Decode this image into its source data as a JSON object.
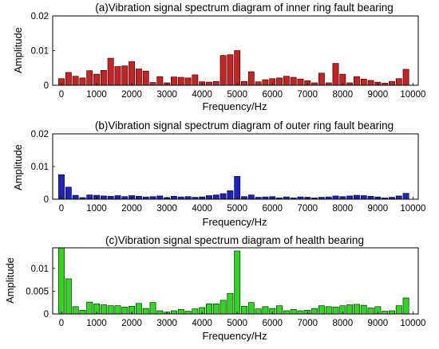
{
  "chart_data": [
    {
      "type": "bar",
      "title": "(a)Vibration signal spectrum diagram of inner ring fault bearing",
      "xlabel": "Frequency/Hz",
      "ylabel": "Amplitude",
      "xlim": [
        -250,
        10150
      ],
      "ylim": [
        0,
        0.02
      ],
      "x_ticks": [
        0,
        1000,
        2000,
        3000,
        4000,
        5000,
        6000,
        7000,
        8000,
        9000,
        10000
      ],
      "y_ticks": [
        0,
        0.01,
        0.02
      ],
      "y_tick_labels": [
        "0",
        "0.01",
        "0.02"
      ],
      "bar_color": "#cc2121",
      "grid": false,
      "x": [
        0,
        200,
        400,
        600,
        800,
        1000,
        1200,
        1400,
        1600,
        1800,
        2000,
        2200,
        2400,
        2600,
        2800,
        3000,
        3200,
        3400,
        3600,
        3800,
        4000,
        4200,
        4400,
        4600,
        4800,
        5000,
        5200,
        5400,
        5600,
        5800,
        6000,
        6200,
        6400,
        6600,
        6800,
        7000,
        7200,
        7400,
        7600,
        7800,
        8000,
        8200,
        8400,
        8600,
        8800,
        9000,
        9200,
        9400,
        9600,
        9800
      ],
      "values": [
        0.0019,
        0.0037,
        0.0026,
        0.0021,
        0.0042,
        0.0032,
        0.0043,
        0.0078,
        0.0054,
        0.0056,
        0.0068,
        0.0047,
        0.0041,
        0.0008,
        0.0025,
        0.0007,
        0.0024,
        0.0023,
        0.0021,
        0.003,
        0.001,
        0.0009,
        0.0011,
        0.0086,
        0.0088,
        0.01,
        0.0011,
        0.0039,
        0.001,
        0.0016,
        0.0019,
        0.0021,
        0.0026,
        0.0023,
        0.0018,
        0.0013,
        0.0007,
        0.0035,
        0.0007,
        0.0063,
        0.0032,
        0.0007,
        0.0025,
        0.0018,
        0.0014,
        0.0009,
        0.0006,
        0.0011,
        0.0019,
        0.0046
      ]
    },
    {
      "type": "bar",
      "title": "(b)Vibration signal spectrum diagram of outer ring fault bearing",
      "xlabel": "Frequency/Hz",
      "ylabel": "Amplitude",
      "xlim": [
        -250,
        10150
      ],
      "ylim": [
        0,
        0.02
      ],
      "x_ticks": [
        0,
        1000,
        2000,
        3000,
        4000,
        5000,
        6000,
        7000,
        8000,
        9000,
        10000
      ],
      "y_ticks": [
        0,
        0.01,
        0.02
      ],
      "y_tick_labels": [
        "0",
        "0.01",
        "0.02"
      ],
      "bar_color": "#1d22c2",
      "grid": false,
      "x": [
        0,
        200,
        400,
        600,
        800,
        1000,
        1200,
        1400,
        1600,
        1800,
        2000,
        2200,
        2400,
        2600,
        2800,
        3000,
        3200,
        3400,
        3600,
        3800,
        4000,
        4200,
        4400,
        4600,
        4800,
        5000,
        5200,
        5400,
        5600,
        5800,
        6000,
        6200,
        6400,
        6600,
        6800,
        7000,
        7200,
        7400,
        7600,
        7800,
        8000,
        8200,
        8400,
        8600,
        8800,
        9000,
        9200,
        9400,
        9600,
        9800
      ],
      "values": [
        0.0075,
        0.0037,
        0.0012,
        0.0005,
        0.0013,
        0.0012,
        0.001,
        0.0009,
        0.0011,
        0.0008,
        0.0011,
        0.0009,
        0.0007,
        0.0008,
        0.001,
        0.0005,
        0.0009,
        0.0007,
        0.0008,
        0.0006,
        0.0007,
        0.0011,
        0.0013,
        0.0017,
        0.0026,
        0.007,
        0.0008,
        0.0013,
        0.0006,
        0.0007,
        0.0008,
        0.0004,
        0.0007,
        0.0004,
        0.0007,
        0.0006,
        0.0004,
        0.0006,
        0.0007,
        0.001,
        0.0008,
        0.001,
        0.0012,
        0.0011,
        0.0009,
        0.0007,
        0.0004,
        0.0006,
        0.001,
        0.0018
      ]
    },
    {
      "type": "bar",
      "title": "(c)Vibration signal spectrum diagram of health bearing",
      "xlabel": "Frequency/Hz",
      "ylabel": "Amplitude",
      "xlim": [
        -250,
        10150
      ],
      "ylim": [
        0,
        0.0145
      ],
      "x_ticks": [
        0,
        1000,
        2000,
        3000,
        4000,
        5000,
        6000,
        7000,
        8000,
        9000,
        10000
      ],
      "y_ticks": [
        0,
        0.005,
        0.01
      ],
      "y_tick_labels": [
        "0",
        "0.005",
        "0.01"
      ],
      "bar_color": "#2dd81f",
      "grid": false,
      "x": [
        0,
        200,
        400,
        600,
        800,
        1000,
        1200,
        1400,
        1600,
        1800,
        2000,
        2200,
        2400,
        2600,
        2800,
        3000,
        3200,
        3400,
        3600,
        3800,
        4000,
        4200,
        4400,
        4600,
        4800,
        5000,
        5200,
        5400,
        5600,
        5800,
        6000,
        6200,
        6400,
        6600,
        6800,
        7000,
        7200,
        7400,
        7600,
        7800,
        8000,
        8200,
        8400,
        8600,
        8800,
        9000,
        9200,
        9400,
        9600,
        9800
      ],
      "values": [
        0.0145,
        0.0077,
        0.0016,
        0.0008,
        0.0026,
        0.0022,
        0.002,
        0.0018,
        0.0018,
        0.0015,
        0.0017,
        0.0023,
        0.0012,
        0.0025,
        0.0007,
        0.0004,
        0.0007,
        0.001,
        0.0006,
        0.0011,
        0.0014,
        0.0022,
        0.0022,
        0.003,
        0.0045,
        0.0138,
        0.0017,
        0.0025,
        0.0011,
        0.0016,
        0.0012,
        0.0018,
        0.0007,
        0.001,
        0.0007,
        0.0008,
        0.0012,
        0.0018,
        0.0016,
        0.0015,
        0.0018,
        0.002,
        0.0021,
        0.0019,
        0.0013,
        0.0016,
        0.0006,
        0.0007,
        0.0018,
        0.0035
      ]
    }
  ]
}
